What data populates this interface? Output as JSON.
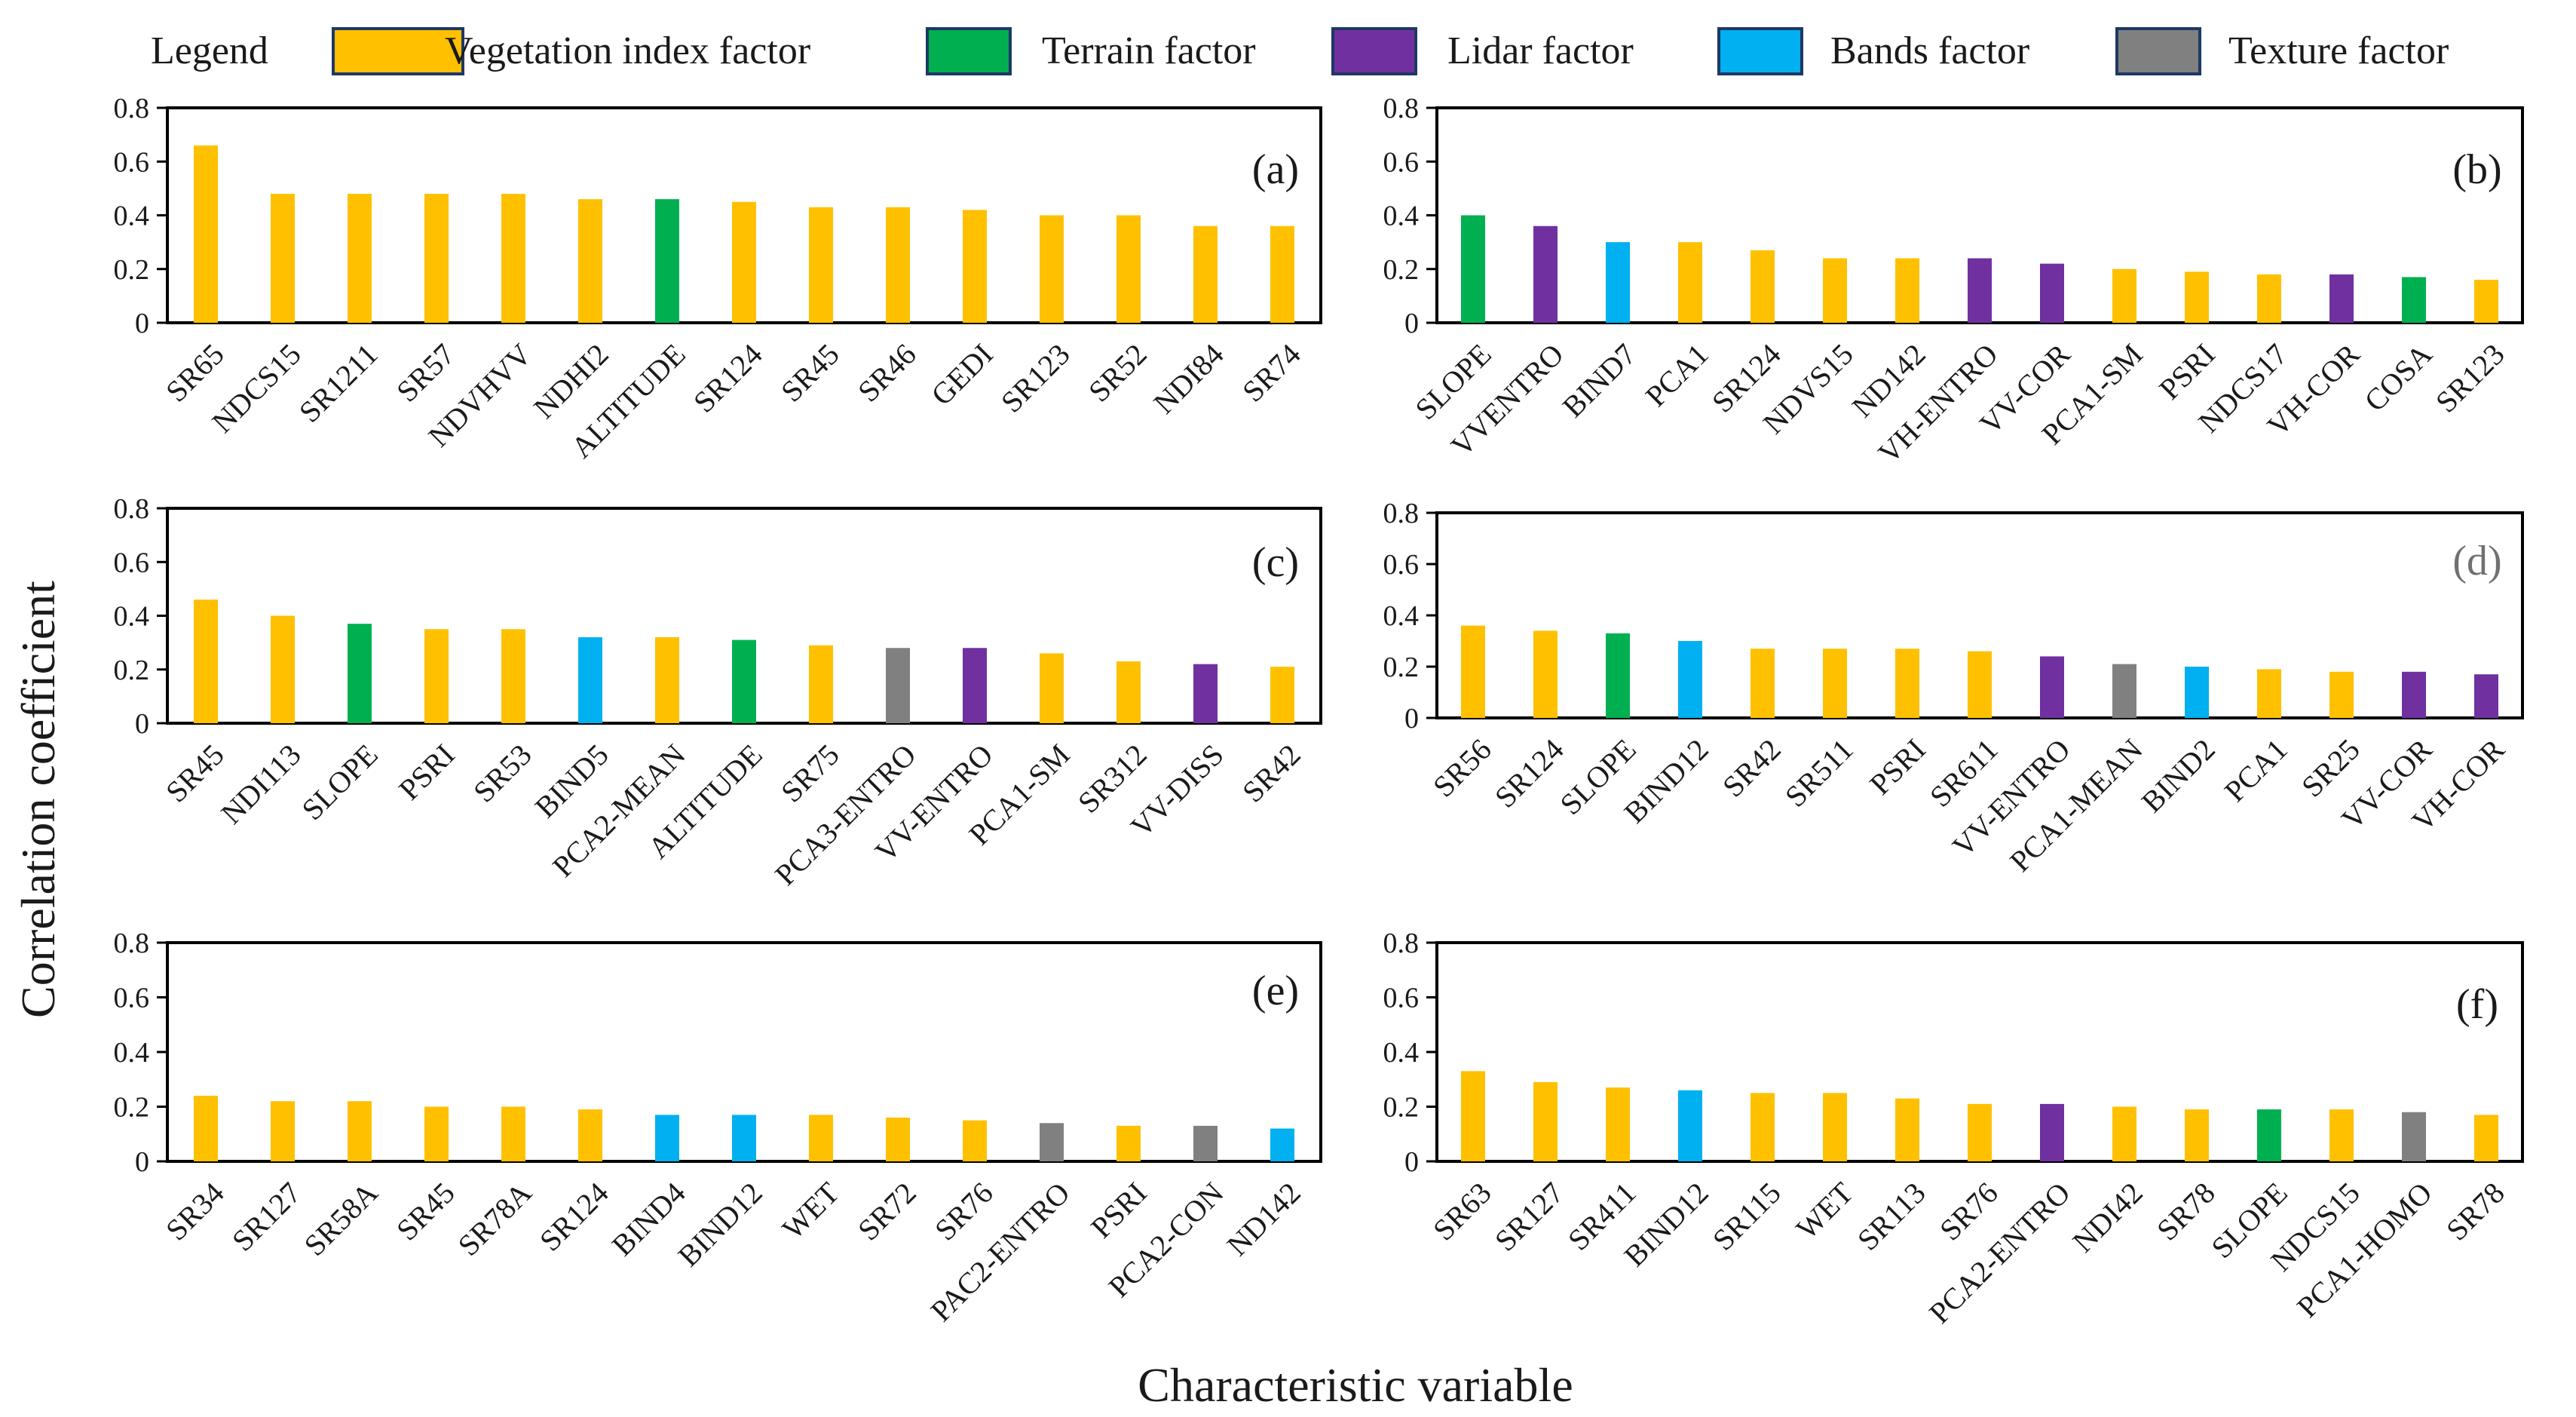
{
  "figure": {
    "ylabel": "Correlation coefficient",
    "xlabel": "Characteristic variable"
  },
  "legend": {
    "title": "Legend",
    "items": [
      {
        "key": "veg",
        "label": "Vegetation index factor",
        "color": "#FFC000"
      },
      {
        "key": "terrain",
        "label": "Terrain factor",
        "color": "#00B050"
      },
      {
        "key": "lidar",
        "label": "Lidar factor",
        "color": "#7030A0"
      },
      {
        "key": "bands",
        "label": "Bands factor",
        "color": "#00B0F0"
      },
      {
        "key": "texture",
        "label": "Texture factor",
        "color": "#808080"
      }
    ]
  },
  "chart_data": [
    {
      "type": "bar",
      "panel": "(a)",
      "ylim": [
        0,
        0.8
      ],
      "yticks": [
        "0",
        "0.2",
        "0.4",
        "0.6",
        "0.8"
      ],
      "categories": [
        "SR65",
        "NDCS15",
        "SR1211",
        "SR57",
        "NDVHVV",
        "NDHI2",
        "ALTITUDE",
        "SR124",
        "SR45",
        "SR46",
        "GEDI",
        "SR123",
        "SR52",
        "NDI84",
        "SR74"
      ],
      "values": [
        0.66,
        0.48,
        0.48,
        0.48,
        0.48,
        0.46,
        0.46,
        0.45,
        0.43,
        0.43,
        0.42,
        0.4,
        0.4,
        0.36,
        0.36
      ],
      "groups": [
        "veg",
        "veg",
        "veg",
        "veg",
        "veg",
        "veg",
        "terrain",
        "veg",
        "veg",
        "veg",
        "veg",
        "veg",
        "veg",
        "veg",
        "veg"
      ]
    },
    {
      "type": "bar",
      "panel": "(b)",
      "ylim": [
        0,
        0.8
      ],
      "yticks": [
        "0",
        "0.2",
        "0.4",
        "0.6",
        "0.8"
      ],
      "categories": [
        "SLOPE",
        "VVENTRO",
        "BIND7",
        "PCA1",
        "SR124",
        "NDVS15",
        "ND142",
        "VH-ENTRO",
        "VV-COR",
        "PCA1-SM",
        "PSRI",
        "NDCS17",
        "VH-COR",
        "COSA",
        "SR123"
      ],
      "values": [
        0.4,
        0.36,
        0.3,
        0.3,
        0.27,
        0.24,
        0.24,
        0.24,
        0.22,
        0.2,
        0.19,
        0.18,
        0.18,
        0.17,
        0.16
      ],
      "groups": [
        "terrain",
        "lidar",
        "bands",
        "veg",
        "veg",
        "veg",
        "veg",
        "lidar",
        "lidar",
        "veg",
        "veg",
        "veg",
        "lidar",
        "terrain",
        "veg"
      ]
    },
    {
      "type": "bar",
      "panel": "(c)",
      "ylim": [
        0,
        0.8
      ],
      "yticks": [
        "0",
        "0.2",
        "0.4",
        "0.6",
        "0.8"
      ],
      "categories": [
        "SR45",
        "NDI113",
        "SLOPE",
        "PSRI",
        "SR53",
        "BIND5",
        "PCA2-MEAN",
        "ALTITUDE",
        "SR75",
        "PCA3-ENTRO",
        "VV-ENTRO",
        "PCA1-SM",
        "SR312",
        "VV-DISS",
        "SR42"
      ],
      "values": [
        0.46,
        0.4,
        0.37,
        0.35,
        0.35,
        0.32,
        0.32,
        0.31,
        0.29,
        0.28,
        0.28,
        0.26,
        0.23,
        0.22,
        0.21
      ],
      "groups": [
        "veg",
        "veg",
        "terrain",
        "veg",
        "veg",
        "bands",
        "veg",
        "terrain",
        "veg",
        "texture",
        "lidar",
        "veg",
        "veg",
        "lidar",
        "veg"
      ]
    },
    {
      "type": "bar",
      "panel": "(d)",
      "ylim": [
        0,
        0.8
      ],
      "yticks": [
        "0",
        "0.2",
        "0.4",
        "0.6",
        "0.8"
      ],
      "categories": [
        "SR56",
        "SR124",
        "SLOPE",
        "BIND12",
        "SR42",
        "SR511",
        "PSRI",
        "SR611",
        "VV-ENTRO",
        "PCA1-MEAN",
        "BIND2",
        "PCA1",
        "SR25",
        "VV-COR",
        "VH-COR"
      ],
      "values": [
        0.36,
        0.34,
        0.33,
        0.3,
        0.27,
        0.27,
        0.27,
        0.26,
        0.24,
        0.21,
        0.2,
        0.19,
        0.18,
        0.18,
        0.17
      ],
      "groups": [
        "veg",
        "veg",
        "terrain",
        "bands",
        "veg",
        "veg",
        "veg",
        "veg",
        "lidar",
        "texture",
        "bands",
        "veg",
        "veg",
        "lidar",
        "lidar"
      ]
    },
    {
      "type": "bar",
      "panel": "(e)",
      "ylim": [
        0,
        0.8
      ],
      "yticks": [
        "0",
        "0.2",
        "0.4",
        "0.6",
        "0.8"
      ],
      "categories": [
        "SR34",
        "SR127",
        "SR58A",
        "SR45",
        "SR78A",
        "SR124",
        "BIND4",
        "BIND12",
        "WET",
        "SR72",
        "SR76",
        "PAC2-ENTRO",
        "PSRI",
        "PCA2-CON",
        "ND142"
      ],
      "values": [
        0.24,
        0.22,
        0.22,
        0.2,
        0.2,
        0.19,
        0.17,
        0.17,
        0.17,
        0.16,
        0.15,
        0.14,
        0.13,
        0.13,
        0.12
      ],
      "groups": [
        "veg",
        "veg",
        "veg",
        "veg",
        "veg",
        "veg",
        "bands",
        "bands",
        "veg",
        "veg",
        "veg",
        "texture",
        "veg",
        "texture",
        "bands"
      ]
    },
    {
      "type": "bar",
      "panel": "(f)",
      "ylim": [
        0,
        0.8
      ],
      "yticks": [
        "0",
        "0.2",
        "0.4",
        "0.6",
        "0.8"
      ],
      "categories": [
        "SR63",
        "SR127",
        "SR411",
        "BIND12",
        "SR115",
        "WET",
        "SR113",
        "SR76",
        "PCA2-ENTRO",
        "NDI42",
        "SR78",
        "SLOPE",
        "NDCS15",
        "PCA1-HOMO",
        "SR78"
      ],
      "values": [
        0.33,
        0.29,
        0.27,
        0.26,
        0.25,
        0.25,
        0.23,
        0.21,
        0.21,
        0.2,
        0.19,
        0.19,
        0.19,
        0.18,
        0.17
      ],
      "groups": [
        "veg",
        "veg",
        "veg",
        "bands",
        "veg",
        "veg",
        "veg",
        "veg",
        "lidar",
        "veg",
        "veg",
        "terrain",
        "veg",
        "texture",
        "veg"
      ]
    }
  ]
}
